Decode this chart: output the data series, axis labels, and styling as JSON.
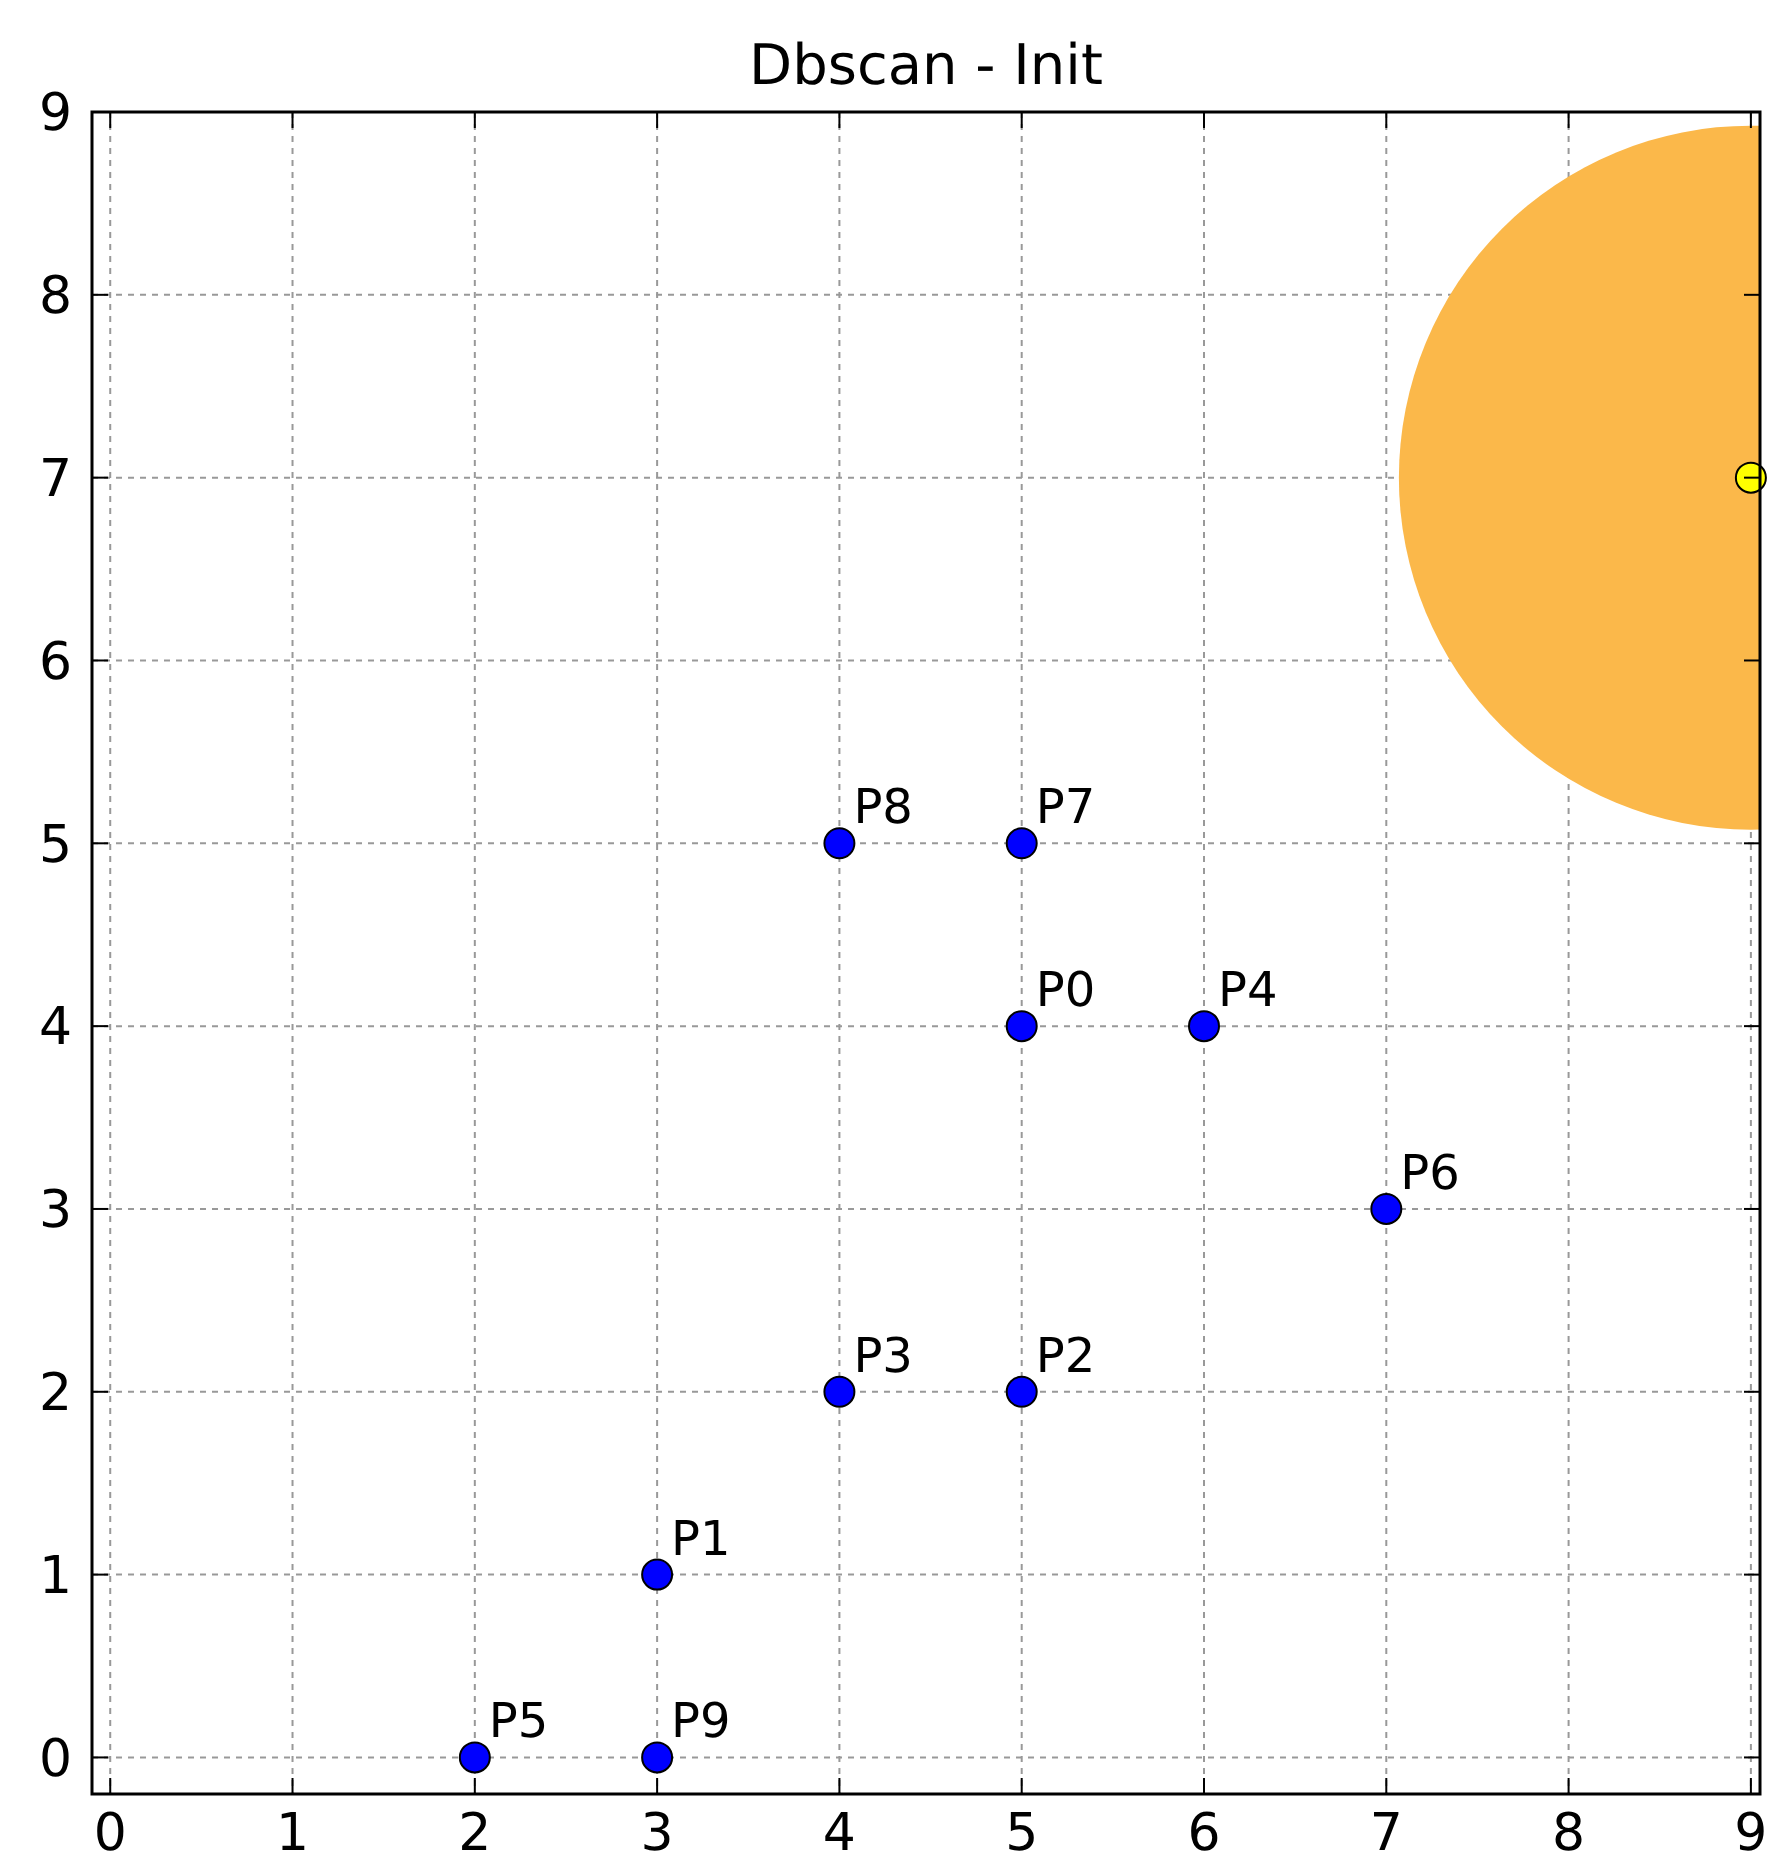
{
  "chart_data": {
    "type": "scatter",
    "title": "Dbscan - Init",
    "xlim": [
      -0.1,
      9.05
    ],
    "ylim": [
      -0.2,
      9
    ],
    "xticks": [
      0,
      1,
      2,
      3,
      4,
      5,
      6,
      7,
      8,
      9
    ],
    "yticks": [
      0,
      1,
      2,
      3,
      4,
      5,
      6,
      7,
      8,
      9
    ],
    "grid": true,
    "marker": "circle",
    "series": [
      {
        "type": "bubble",
        "color": "#fbb84a",
        "x": [
          9
        ],
        "values": [
          7
        ],
        "sizes": [
          1
        ]
      },
      {
        "color": "#0000ff",
        "x": [
          5,
          3,
          5,
          4,
          6,
          2,
          7,
          5,
          4,
          3
        ],
        "values": [
          4,
          1,
          2,
          2,
          4,
          0,
          3,
          5,
          5,
          0
        ]
      },
      {
        "color": "#ffff00",
        "x": [
          9
        ],
        "values": [
          7
        ]
      }
    ],
    "annotations": [
      {
        "text": "P0",
        "x": 5,
        "y": 4
      },
      {
        "text": "P1",
        "x": 3,
        "y": 1
      },
      {
        "text": "P2",
        "x": 5,
        "y": 2
      },
      {
        "text": "P3",
        "x": 4,
        "y": 2
      },
      {
        "text": "P4",
        "x": 6,
        "y": 4
      },
      {
        "text": "P5",
        "x": 2,
        "y": 0
      },
      {
        "text": "P6",
        "x": 7,
        "y": 3
      },
      {
        "text": "P7",
        "x": 5,
        "y": 5
      },
      {
        "text": "P8",
        "x": 4,
        "y": 5
      },
      {
        "text": "P9",
        "x": 3,
        "y": 0
      }
    ]
  }
}
